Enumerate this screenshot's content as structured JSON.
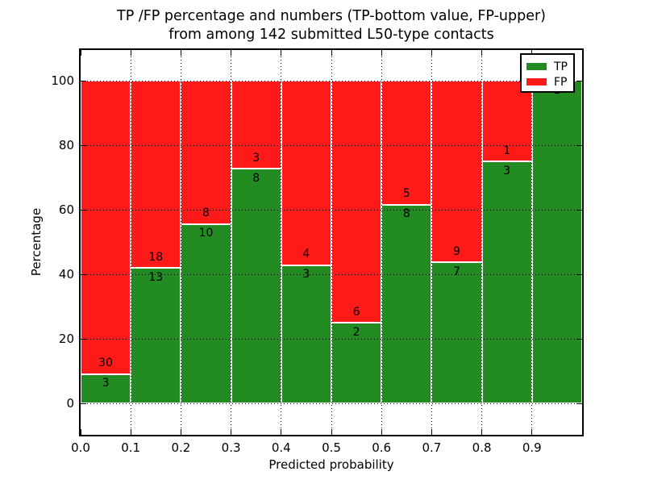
{
  "title": {
    "line1": "TP /FP percentage and numbers (TP-bottom value, FP-upper)",
    "line2": "from among 142 submitted L50-type contacts"
  },
  "axes": {
    "ylabel": "Percentage",
    "xlabel": "Predicted probability",
    "ytick_values": [
      0,
      20,
      40,
      60,
      80,
      100
    ],
    "ytick_labels": [
      "0",
      "20",
      "40",
      "60",
      "80",
      "100"
    ],
    "xtick_labels": [
      "0.0",
      "0.1",
      "0.2",
      "0.3",
      "0.4",
      "0.5",
      "0.6",
      "0.7",
      "0.8",
      "0.9"
    ],
    "ylim": [
      -10,
      110
    ],
    "xlim": [
      0.0,
      1.0
    ],
    "grid": "dotted"
  },
  "legend": {
    "position": "upper-right",
    "entries": [
      {
        "label": "TP",
        "color": "#228b22"
      },
      {
        "label": "FP",
        "color": "#ff1a1a"
      }
    ]
  },
  "colors": {
    "tp_green": "#228b22",
    "fp_red": "#ff1a1a",
    "bar_edge": "#ffffff",
    "grid_line": "#000000",
    "background": "#ffffff"
  },
  "chart_data": {
    "type": "bar",
    "stacked": true,
    "normalized_to_percent": 100,
    "total_contacts": 142,
    "bin_edges": [
      0.0,
      0.1,
      0.2,
      0.3,
      0.4,
      0.5,
      0.6,
      0.7,
      0.8,
      0.9,
      1.0
    ],
    "categories": [
      "0.0-0.1",
      "0.1-0.2",
      "0.2-0.3",
      "0.3-0.4",
      "0.4-0.5",
      "0.5-0.6",
      "0.6-0.7",
      "0.7-0.8",
      "0.8-0.9",
      "0.9-1.0"
    ],
    "series": [
      {
        "name": "TP",
        "counts": [
          3,
          13,
          10,
          8,
          3,
          2,
          8,
          7,
          3,
          1
        ]
      },
      {
        "name": "FP",
        "counts": [
          30,
          18,
          8,
          3,
          4,
          6,
          5,
          9,
          1,
          0
        ]
      }
    ],
    "tp_percent": [
      9.09,
      41.94,
      55.56,
      72.73,
      42.86,
      25.0,
      61.54,
      43.75,
      75.0,
      100.0
    ],
    "tp_value_labels": [
      "3",
      "13",
      "10",
      "8",
      "3",
      "2",
      "8",
      "7",
      "3",
      "1"
    ],
    "fp_value_labels": [
      "30",
      "18",
      "8",
      "3",
      "4",
      "6",
      "5",
      "9",
      "1",
      ""
    ],
    "title": "TP /FP percentage and numbers (TP-bottom value, FP-upper) from among 142 submitted L50-type contacts",
    "xlabel": "Predicted probability",
    "ylabel": "Percentage"
  }
}
